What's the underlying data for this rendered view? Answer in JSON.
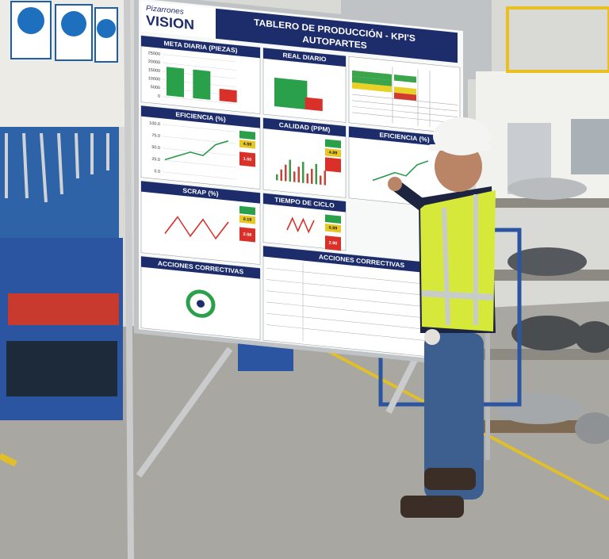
{
  "board": {
    "brand": {
      "line1": "Pizarrones",
      "line2": "VISION"
    },
    "title": {
      "line1": "TABLERO DE PRODUCCIÓN - KPI'S",
      "line2": "AUTOPARTES"
    },
    "panels": [
      {
        "title": "META DIARIA (PIEZAS)",
        "ticks": [
          "25000",
          "20000",
          "15000",
          "10000",
          "5000",
          "0"
        ]
      },
      {
        "title": "REAL DIARIO"
      },
      {
        "title": "EFICIENCIA (%)",
        "ticks": [
          "100.0",
          "75.0",
          "50.0",
          "25.0",
          "0.0"
        ],
        "badges": [
          "4.59",
          "1.50"
        ]
      },
      {
        "title": "CALIDAD (PPM)",
        "badges": [
          "4.89"
        ]
      },
      {
        "title": "EFICIENCIA (%)"
      },
      {
        "title": "SCRAP (%)",
        "badges": [
          "0.19",
          "2.58"
        ]
      },
      {
        "title": "TIEMPO DE CICLO",
        "badges": [
          "0.89",
          "2.90"
        ]
      },
      {
        "title": "ACCIONES CORRECTIVAS"
      },
      {
        "title": "ACCIONES CORRECTIVAS"
      }
    ]
  }
}
